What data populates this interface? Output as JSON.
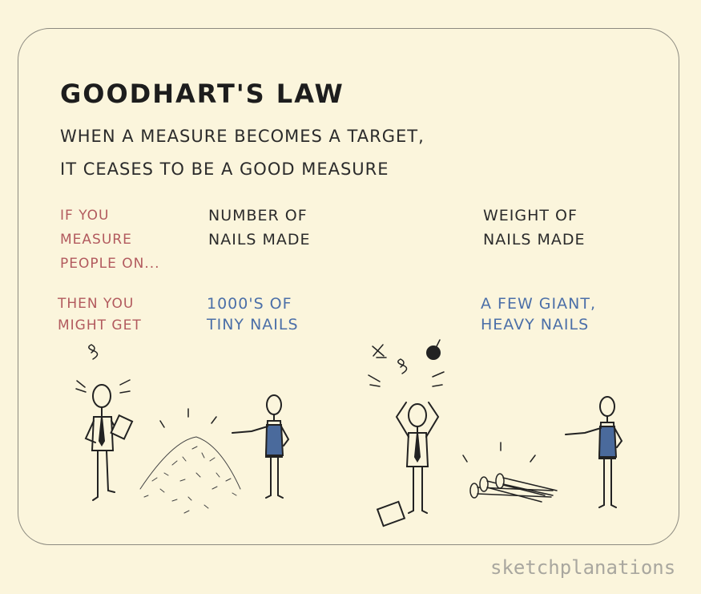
{
  "title": "Goodhart's Law",
  "subtitle": [
    "When a measure becomes a target,",
    "it ceases to be a good measure"
  ],
  "row_labels": {
    "measure": [
      "If you",
      "measure",
      "people on..."
    ],
    "result": [
      "Then you",
      "might get"
    ]
  },
  "columns": [
    {
      "measure": [
        "Number of",
        "nails made"
      ],
      "result": [
        "1000's of",
        "tiny nails"
      ]
    },
    {
      "measure": [
        "Weight of",
        "nails made"
      ],
      "result": [
        "A few giant,",
        "heavy nails"
      ]
    }
  ],
  "watermark": "sketchplanations",
  "colors": {
    "background": "#fbf5dc",
    "label_red": "#b25a5e",
    "result_blue": "#4b6fa8",
    "apron_blue": "#4a6a9c"
  }
}
